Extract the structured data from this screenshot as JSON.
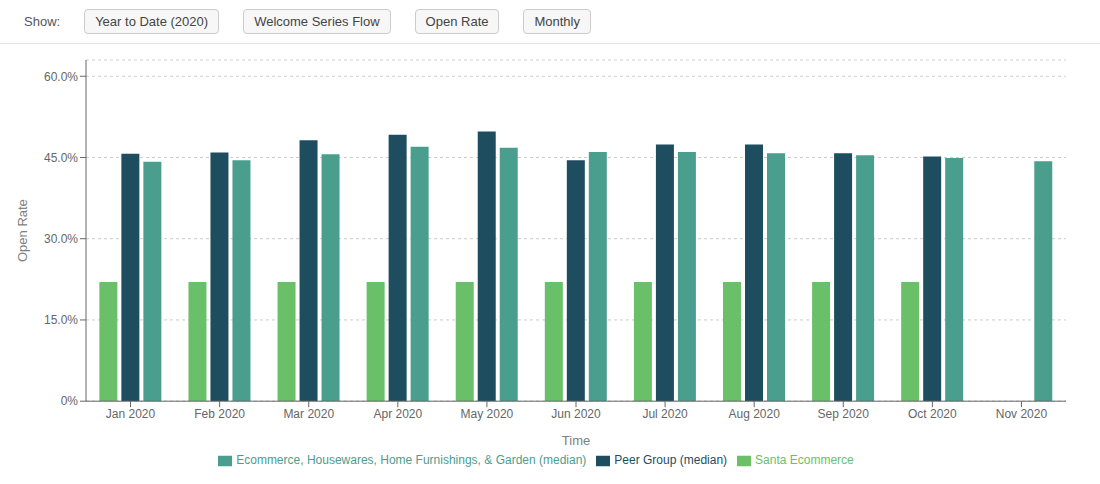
{
  "chart_data": {
    "type": "bar",
    "xlabel": "Time",
    "ylabel": "Open Rate",
    "annotations": [
      "Show:",
      "Year to Date (2020)",
      "Welcome Series Flow",
      "Open Rate",
      "Monthly"
    ],
    "categories": [
      "Jan 2020",
      "Feb 2020",
      "Mar 2020",
      "Apr 2020",
      "May 2020",
      "Jun 2020",
      "Jul 2020",
      "Aug 2020",
      "Sep 2020",
      "Oct 2020",
      "Nov 2020"
    ],
    "series": [
      {
        "name": "Santa Ecommerce",
        "color": "#6abf69",
        "values": [
          22.0,
          22.0,
          22.0,
          22.0,
          22.0,
          22.0,
          22.0,
          22.0,
          22.0,
          22.0,
          null
        ]
      },
      {
        "name": "Peer Group (median)",
        "color": "#1e4d5f",
        "values": [
          45.7,
          45.9,
          48.2,
          49.2,
          49.8,
          44.5,
          47.4,
          47.4,
          45.8,
          45.2,
          null
        ]
      },
      {
        "name": "Ecommerce, Housewares, Home Furnishings, & Garden (median)",
        "color": "#4a9e8e",
        "values": [
          44.2,
          44.5,
          45.6,
          47.0,
          46.8,
          46.0,
          46.0,
          45.8,
          45.4,
          44.9,
          44.3
        ]
      }
    ],
    "ylim": [
      0,
      63
    ],
    "yticks": [
      {
        "value": 0,
        "label": "0%"
      },
      {
        "value": 15.0,
        "label": "15.0%"
      },
      {
        "value": 30.0,
        "label": "30.0%"
      },
      {
        "value": 45.0,
        "label": "45.0%"
      },
      {
        "value": 60.0,
        "label": "60.0%"
      }
    ],
    "grid": true,
    "legend": "bottom"
  }
}
